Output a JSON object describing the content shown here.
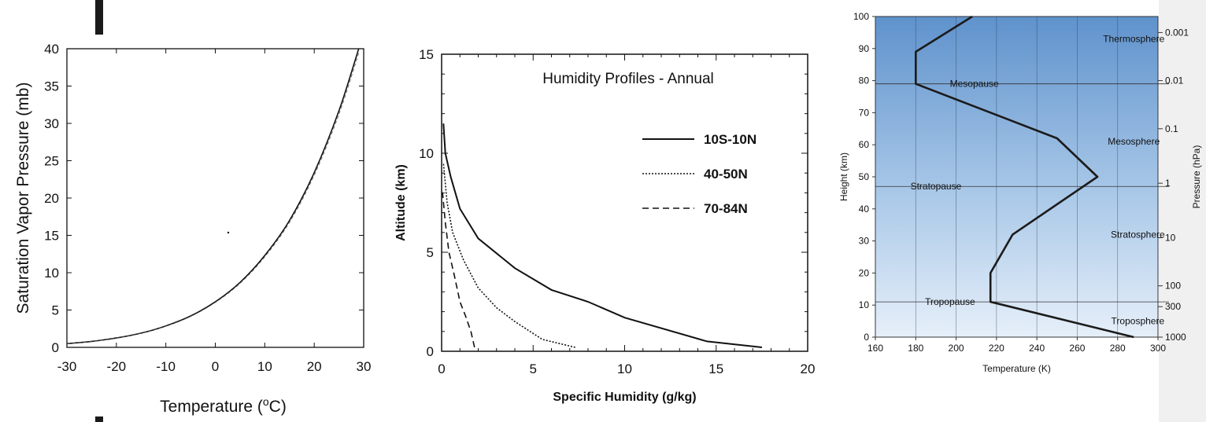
{
  "chart_data": [
    {
      "type": "line",
      "xlabel": "Temperature (",
      "xlabel_sup": "o",
      "xlabel_tail": "C)",
      "ylabel": "Saturation Vapor Pressure (mb)",
      "xlim": [
        -30,
        30
      ],
      "ylim": [
        0,
        40
      ],
      "xticks": [
        -30,
        -20,
        -10,
        0,
        10,
        20,
        30
      ],
      "yticks": [
        0,
        5,
        10,
        15,
        20,
        25,
        30,
        35,
        40
      ],
      "grid": false,
      "series": [
        {
          "x": [
            -30,
            -25,
            -20,
            -15,
            -10,
            -5,
            0,
            5,
            10,
            15,
            20,
            25,
            29
          ],
          "y": [
            0.5,
            0.8,
            1.25,
            1.9,
            2.87,
            4.2,
            6.1,
            8.7,
            12.3,
            17.0,
            23.4,
            31.7,
            40.0
          ]
        }
      ]
    },
    {
      "type": "line",
      "title": "Humidity Profiles - Annual",
      "xlabel": "Specific Humidity (g/kg)",
      "ylabel": "Altitude (km)",
      "xlim": [
        0,
        20
      ],
      "ylim": [
        0,
        15
      ],
      "xticks": [
        0,
        5,
        10,
        15,
        20
      ],
      "yticks": [
        0,
        5,
        10,
        15
      ],
      "grid": false,
      "legend": "top-right",
      "series": [
        {
          "name": "10S-10N",
          "style": "solid",
          "x": [
            17.5,
            14.5,
            10,
            8,
            6,
            4,
            2,
            1,
            0.5,
            0.2,
            0.1
          ],
          "y": [
            0.2,
            0.5,
            1.7,
            2.5,
            3.1,
            4.2,
            5.7,
            7.2,
            8.8,
            10.0,
            11.5
          ]
        },
        {
          "name": "40-50N",
          "style": "dotted",
          "x": [
            7.3,
            5.5,
            4,
            3,
            2,
            1.2,
            0.6,
            0.3,
            0.1
          ],
          "y": [
            0.2,
            0.6,
            1.5,
            2.2,
            3.2,
            4.6,
            6.0,
            7.5,
            9.5
          ]
        },
        {
          "name": "70-84N",
          "style": "dashed",
          "x": [
            1.8,
            1.6,
            1.3,
            1.0,
            0.7,
            0.4,
            0.2,
            0.05
          ],
          "y": [
            0.2,
            1.0,
            1.8,
            2.5,
            3.8,
            5.0,
            6.5,
            8.0
          ]
        }
      ]
    },
    {
      "type": "line",
      "xlabel": "Temperature (K)",
      "ylabel": "Height (km)",
      "ylabel_right": "Pressure (hPa)",
      "xlim": [
        160,
        300
      ],
      "ylim": [
        0,
        100
      ],
      "xticks": [
        160,
        180,
        200,
        220,
        240,
        260,
        280,
        300
      ],
      "yticks": [
        0,
        10,
        20,
        30,
        40,
        50,
        60,
        70,
        80,
        90,
        100
      ],
      "grid": true,
      "pressure_ticks": [
        {
          "label": "1000",
          "h": 0
        },
        {
          "label": "300",
          "h": 9.5
        },
        {
          "label": "100",
          "h": 16
        },
        {
          "label": "10",
          "h": 31
        },
        {
          "label": "1",
          "h": 48
        },
        {
          "label": "0.1",
          "h": 65
        },
        {
          "label": "0.01",
          "h": 80
        },
        {
          "label": "0.001",
          "h": 95
        }
      ],
      "layers": [
        {
          "name": "Troposphere",
          "t": 290,
          "h": 5
        },
        {
          "name": "Stratosphere",
          "t": 290,
          "h": 32
        },
        {
          "name": "Mesosphere",
          "t": 288,
          "h": 61
        },
        {
          "name": "Thermosphere",
          "t": 288,
          "h": 93
        }
      ],
      "pauses": [
        {
          "name": "Tropopause",
          "t": 197,
          "h": 11
        },
        {
          "name": "Stratopause",
          "t": 190,
          "h": 47
        },
        {
          "name": "Mesopause",
          "t": 209,
          "h": 79
        }
      ],
      "series": [
        {
          "x": [
            288,
            217,
            217,
            228,
            270,
            250,
            180,
            180,
            208
          ],
          "y": [
            0,
            11,
            20,
            32,
            50,
            62,
            79,
            89,
            100
          ]
        }
      ]
    }
  ]
}
